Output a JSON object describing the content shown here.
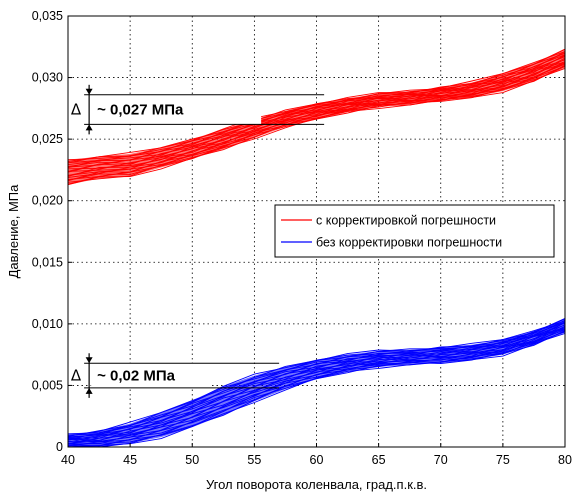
{
  "chart_data": {
    "type": "line",
    "title": "",
    "xlabel": "Угол поворота коленвала, град.п.к.в.",
    "ylabel": "Давление, МПа",
    "xlim": [
      40,
      80
    ],
    "ylim": [
      0,
      0.035
    ],
    "xticks": [
      40,
      45,
      50,
      55,
      60,
      65,
      70,
      75,
      80
    ],
    "xtick_labels": [
      "40",
      "45",
      "50",
      "55",
      "60",
      "65",
      "70",
      "75",
      "80"
    ],
    "yticks": [
      0,
      0.005,
      0.01,
      0.015,
      0.02,
      0.025,
      0.03,
      0.035
    ],
    "ytick_labels": [
      "0",
      "0,005",
      "0,010",
      "0,015",
      "0,020",
      "0,025",
      "0,030",
      "0,035"
    ],
    "grid": true,
    "legend_position": "middle-right",
    "x": [
      40,
      42.5,
      45,
      47.5,
      50,
      52.5,
      55,
      57.5,
      60,
      62.5,
      65,
      67.5,
      70,
      72.5,
      75,
      77.5,
      80
    ],
    "series": [
      {
        "name": "с корректировкой погрешности",
        "color": "#ff0000",
        "band_upper": [
          0.0233,
          0.0236,
          0.0238,
          0.0243,
          0.025,
          0.0258,
          0.0266,
          0.0273,
          0.0279,
          0.0283,
          0.0287,
          0.0289,
          0.0292,
          0.0296,
          0.0303,
          0.0312,
          0.0323
        ],
        "band_lower": [
          0.0213,
          0.0218,
          0.022,
          0.0227,
          0.0234,
          0.0242,
          0.0251,
          0.026,
          0.0266,
          0.0272,
          0.0276,
          0.0278,
          0.0281,
          0.0284,
          0.0289,
          0.0297,
          0.0308
        ]
      },
      {
        "name": "без корректировки погрешности",
        "color": "#0000ff",
        "band_upper": [
          0.001,
          0.0013,
          0.0019,
          0.0028,
          0.0038,
          0.0049,
          0.0058,
          0.0065,
          0.0071,
          0.0075,
          0.0078,
          0.0079,
          0.0081,
          0.0083,
          0.0087,
          0.0094,
          0.0104
        ],
        "band_lower": [
          0.0,
          0.0,
          0.0003,
          0.0008,
          0.0016,
          0.0026,
          0.0037,
          0.0047,
          0.0055,
          0.0061,
          0.0065,
          0.0067,
          0.0068,
          0.0071,
          0.0075,
          0.0083,
          0.0093
        ]
      }
    ],
    "annotations": [
      {
        "symbol": "Δ",
        "text": "~ 0,027 МПа",
        "y_top": 0.0286,
        "y_bottom": 0.0262
      },
      {
        "symbol": "Δ",
        "text": "~ 0,02 МПа",
        "y_top": 0.0068,
        "y_bottom": 0.0048
      }
    ]
  }
}
